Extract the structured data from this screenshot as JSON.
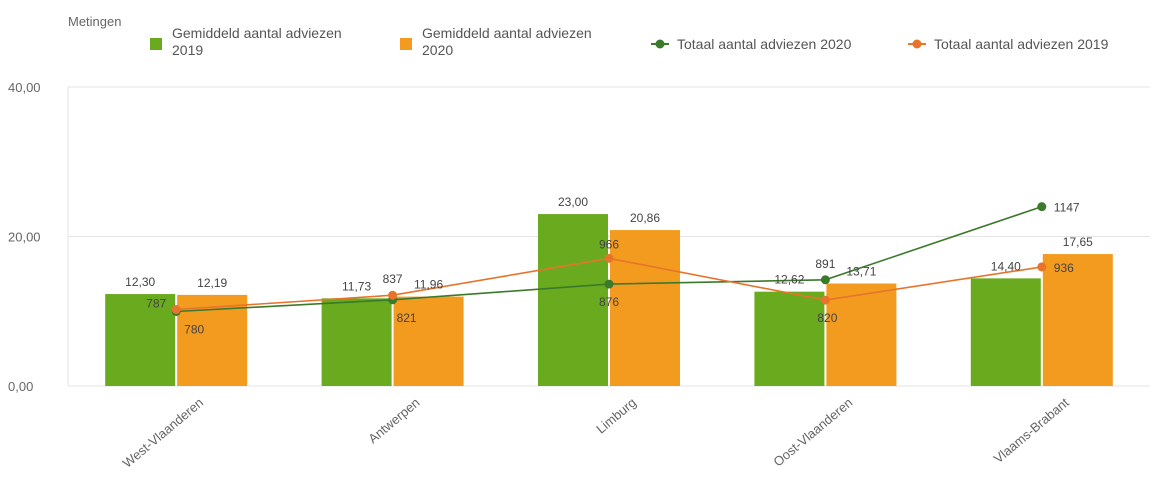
{
  "chart_data": {
    "type": "bar",
    "legend_title": "Metingen",
    "legend": [
      {
        "label": [
          "Gemiddeld aantal adviezen",
          "2019"
        ],
        "kind": "bar",
        "color": "#6aaa1e"
      },
      {
        "label": [
          "Gemiddeld aantal adviezen",
          "2020"
        ],
        "kind": "bar",
        "color": "#f39b1f"
      },
      {
        "label": [
          "Totaal aantal adviezen 2020"
        ],
        "kind": "line",
        "color": "#3b7a2a"
      },
      {
        "label": [
          "Totaal aantal adviezen 2019"
        ],
        "kind": "line",
        "color": "#e8732a"
      }
    ],
    "legend_position": "top",
    "categories": [
      "West-Vlaanderen",
      "Antwerpen",
      "Limburg",
      "Oost-Vlaanderen",
      "Vlaams-Brabant"
    ],
    "y_ticks": [
      "0,00",
      "20,00",
      "40,00"
    ],
    "ylim": [
      0,
      40
    ],
    "grid": true,
    "bar_series": [
      {
        "name": "Gemiddeld aantal adviezen 2019",
        "color": "#6aaa1e",
        "values": [
          12.3,
          11.73,
          23.0,
          12.62,
          14.4
        ],
        "labels": [
          "12,30",
          "11,73",
          "23,00",
          "12,62",
          "14,40"
        ]
      },
      {
        "name": "Gemiddeld aantal adviezen 2020",
        "color": "#f39b1f",
        "values": [
          12.19,
          11.96,
          20.86,
          13.71,
          17.65
        ],
        "labels": [
          "12,19",
          "11,96",
          "20,86",
          "13,71",
          "17,65"
        ]
      }
    ],
    "line_series": [
      {
        "name": "Totaal aantal adviezen 2020",
        "color": "#3b7a2a",
        "values": [
          780,
          821,
          876,
          891,
          1147
        ],
        "labels": [
          "780",
          "821",
          "876",
          "891",
          "1147"
        ]
      },
      {
        "name": "Totaal aantal adviezen 2019",
        "color": "#e8732a",
        "values": [
          787,
          837,
          966,
          820,
          936
        ],
        "labels": [
          "787",
          "837",
          "966",
          "820",
          "936"
        ]
      }
    ]
  }
}
